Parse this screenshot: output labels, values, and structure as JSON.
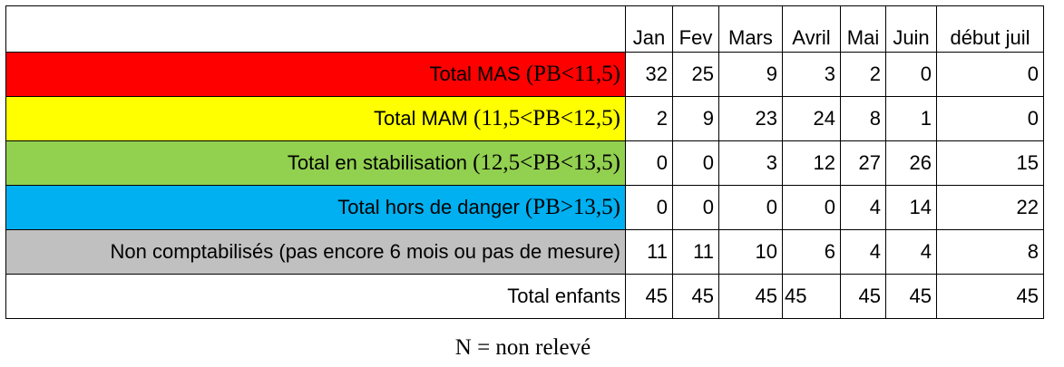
{
  "chart_data": {
    "type": "table",
    "columns": [
      "Jan",
      "Fev",
      "Mars",
      "Avril",
      "Mai",
      "Juin",
      "début juil"
    ],
    "rows": [
      {
        "label": "Total MAS ",
        "range": "(PB<11,5)",
        "color": "#ff0000",
        "values": [
          32,
          25,
          9,
          3,
          2,
          0,
          0
        ]
      },
      {
        "label": "Total MAM ",
        "range": "(11,5<PB<12,5)",
        "color": "#ffff00",
        "values": [
          2,
          9,
          23,
          24,
          8,
          1,
          0
        ]
      },
      {
        "label": "Total en stabilisation ",
        "range": "(12,5<PB<13,5)",
        "color": "#92d050",
        "values": [
          0,
          0,
          3,
          12,
          27,
          26,
          15
        ]
      },
      {
        "label": "Total hors de danger ",
        "range": "(PB>13,5)",
        "color": "#00b0f0",
        "values": [
          0,
          0,
          0,
          0,
          4,
          14,
          22
        ]
      },
      {
        "label": "Non comptabilisés (pas encore 6 mois ou pas de mesure)",
        "range": "",
        "color": "#c0c0c0",
        "values": [
          11,
          11,
          10,
          6,
          4,
          4,
          8
        ]
      },
      {
        "label": "Total enfants",
        "range": "",
        "color": "#ffffff",
        "values": [
          45,
          45,
          45,
          45,
          45,
          45,
          45
        ]
      }
    ]
  },
  "note": "N = non relevé"
}
